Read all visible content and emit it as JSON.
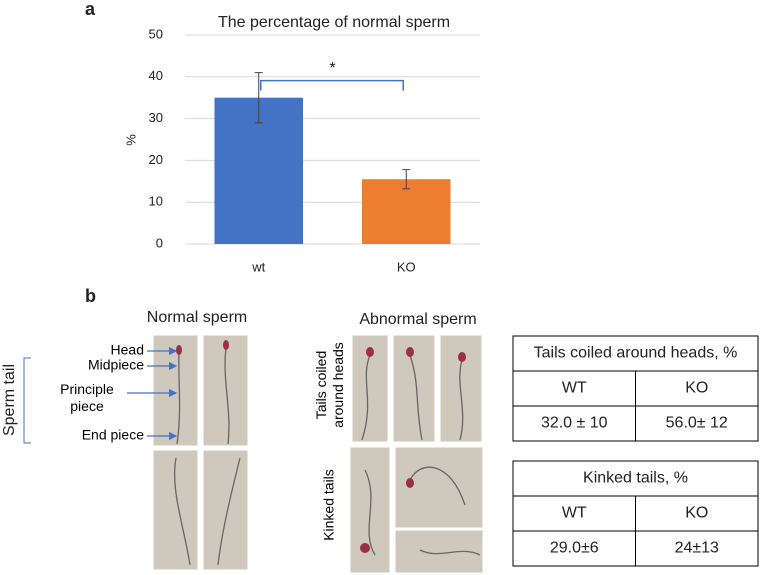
{
  "panel_labels": [
    "a",
    "b"
  ],
  "chart_data": {
    "type": "bar",
    "title": "The percentage of normal sperm",
    "y_label": "%",
    "categories": [
      "wt",
      "KO"
    ],
    "values": [
      35,
      15.5
    ],
    "errors": [
      6,
      2.3
    ],
    "colors": [
      "#4472c4",
      "#ed7d31"
    ],
    "significance": "*",
    "ylim": [
      0,
      50
    ],
    "yticks": [
      0,
      10,
      20,
      30,
      40,
      50
    ],
    "grid": true
  },
  "panel_b": {
    "normal_title": "Normal sperm",
    "abnormal_title": "Abnormal sperm",
    "parts": [
      "Head",
      "Midpiece",
      "Principle piece",
      "End piece"
    ],
    "tail_label": "Sperm tail",
    "row_labels": [
      "Tails coiled around heads",
      "Kinked tails"
    ]
  },
  "tables": [
    {
      "title": "Tails coiled around heads, %",
      "columns": [
        "WT",
        "KO"
      ],
      "rows": [
        [
          "32.0 ± 10",
          "56.0± 12"
        ]
      ]
    },
    {
      "title": "Kinked tails, %",
      "columns": [
        "WT",
        "KO"
      ],
      "rows": [
        [
          "29.0±6",
          "24±13"
        ]
      ]
    }
  ]
}
